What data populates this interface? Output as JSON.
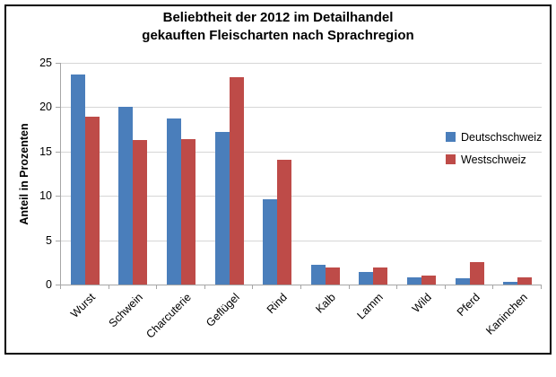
{
  "chart_data": {
    "type": "bar",
    "title": "Beliebtheit der 2012 im Detailhandel\ngekauften Fleischarten nach Sprachregion",
    "xlabel": "",
    "ylabel": "Anteil in Prozenten",
    "ylim": [
      0,
      25
    ],
    "yticks": [
      0,
      5,
      10,
      15,
      20,
      25
    ],
    "grid": true,
    "legend_position": "right-middle",
    "categories": [
      "Wurst",
      "Schwein",
      "Charcuterie",
      "Geflügel",
      "Rind",
      "Kalb",
      "Lamm",
      "Wild",
      "Pferd",
      "Kaninchen"
    ],
    "series": [
      {
        "name": "Deutschschweiz",
        "color": "#4A7EBB",
        "values": [
          23.7,
          20.0,
          18.7,
          17.2,
          9.6,
          2.2,
          1.4,
          0.8,
          0.7,
          0.3
        ]
      },
      {
        "name": "Westschweiz",
        "color": "#BE4B48",
        "values": [
          18.9,
          16.3,
          16.4,
          23.4,
          14.1,
          1.9,
          1.9,
          1.0,
          2.5,
          0.8
        ]
      }
    ]
  },
  "colors": {
    "series_deutschschweiz": "#4A7EBB",
    "series_westschweiz": "#BE4B48",
    "gridline": "#D6D6D6",
    "axis": "#A6A6A6",
    "border": "#000000",
    "background": "#FFFFFF",
    "text": "#000000"
  }
}
